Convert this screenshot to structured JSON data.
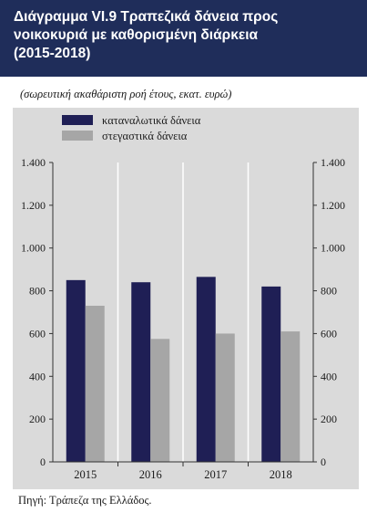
{
  "header": {
    "title_lines": [
      "Διάγραμμα VI.9  Τραπεζικά δάνεια προς",
      "νοικοκυριά με καθορισμένη διάρκεια",
      "(2015-2018)"
    ]
  },
  "subtitle": "(σωρευτική ακαθάριστη ροή έτους, εκατ. ευρώ)",
  "source": "Πηγή: Τράπεζα της Ελλάδος.",
  "colors": {
    "header_bg": "#1f2d5a",
    "consumer": "#1f1f55",
    "housing": "#a6a6a6",
    "panel_bg": "#dadada"
  },
  "chart_data": {
    "type": "bar",
    "categories": [
      "2015",
      "2016",
      "2017",
      "2018"
    ],
    "series": [
      {
        "name": "καταναλωτικά δάνεια",
        "values": [
          850,
          840,
          865,
          820
        ],
        "color": "#1f1f55"
      },
      {
        "name": "στεγαστικά δάνεια",
        "values": [
          730,
          575,
          600,
          610
        ],
        "color": "#a6a6a6"
      }
    ],
    "ylim": [
      0,
      1400
    ],
    "yticks": [
      0,
      200,
      400,
      600,
      800,
      1000,
      1200,
      1400
    ],
    "ytick_labels": [
      "0",
      "200",
      "400",
      "600",
      "800",
      "1.000",
      "1.200",
      "1.400"
    ],
    "legend_position": "top-left",
    "grid": true,
    "secondary_y_axis": true
  }
}
